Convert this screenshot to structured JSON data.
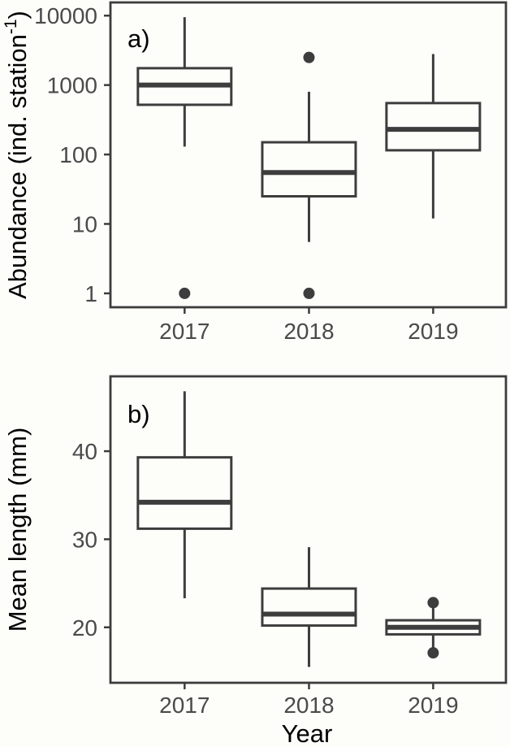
{
  "colors": {
    "stroke": "#3d3d3d",
    "tick_text": "#4a4a4a",
    "title_text": "#000000",
    "background": "#fdfdfa",
    "box_fill": "#fdfdfa"
  },
  "chart_data": [
    {
      "type": "boxplot",
      "panel_label": "a)",
      "ylabel": "Abundance (ind. station⁻¹)",
      "ylabel_parts": {
        "main": "Abundance (ind. station",
        "sup": "-1",
        "close": ")"
      },
      "yscale": "log10",
      "yticks": [
        1,
        10,
        100,
        1000,
        10000
      ],
      "ytick_labels": [
        "1",
        "10",
        "100",
        "1000",
        "10000"
      ],
      "ylim_log10": [
        -0.2,
        4.19
      ],
      "grid": false,
      "categories": [
        "2017",
        "2018",
        "2019"
      ],
      "boxes": [
        {
          "category": "2017",
          "whisker_low": 130,
          "q1": 520,
          "median": 1000,
          "q3": 1750,
          "whisker_high": 9500,
          "outliers": [
            1
          ]
        },
        {
          "category": "2018",
          "whisker_low": 5.5,
          "q1": 25,
          "median": 55,
          "q3": 150,
          "whisker_high": 800,
          "outliers": [
            2500,
            1
          ]
        },
        {
          "category": "2019",
          "whisker_low": 12,
          "q1": 115,
          "median": 230,
          "q3": 550,
          "whisker_high": 2800,
          "outliers": []
        }
      ]
    },
    {
      "type": "boxplot",
      "panel_label": "b)",
      "ylabel": "Mean length (mm)",
      "yscale": "linear",
      "yticks": [
        20,
        30,
        40
      ],
      "ytick_labels": [
        "20",
        "30",
        "40"
      ],
      "ylim": [
        13.7,
        48.5
      ],
      "grid": false,
      "xlabel": "Year",
      "categories": [
        "2017",
        "2018",
        "2019"
      ],
      "boxes": [
        {
          "category": "2017",
          "whisker_low": 23.3,
          "q1": 31.2,
          "median": 34.2,
          "q3": 39.3,
          "whisker_high": 46.8,
          "outliers": []
        },
        {
          "category": "2018",
          "whisker_low": 15.5,
          "q1": 20.2,
          "median": 21.5,
          "q3": 24.4,
          "whisker_high": 29.1,
          "outliers": []
        },
        {
          "category": "2019",
          "whisker_low": 17.7,
          "q1": 19.2,
          "median": 20.0,
          "q3": 20.8,
          "whisker_high": 22.3,
          "outliers": [
            22.8,
            17.1
          ]
        }
      ]
    }
  ]
}
